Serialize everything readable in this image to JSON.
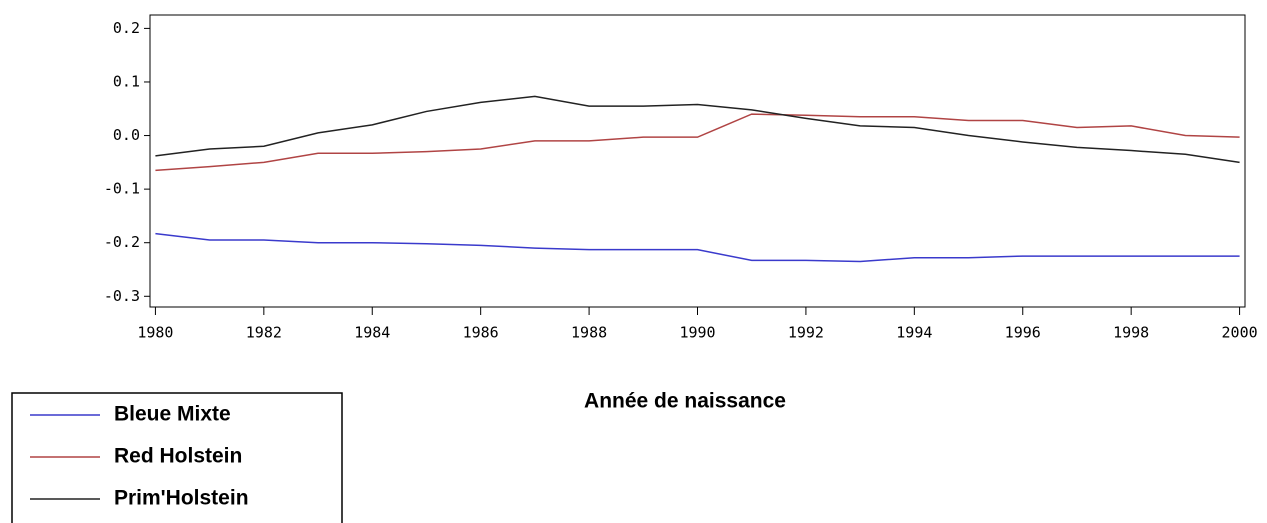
{
  "chart_data": {
    "type": "line",
    "xlabel": "Année de naissance",
    "x": [
      1980,
      1981,
      1982,
      1983,
      1984,
      1985,
      1986,
      1987,
      1988,
      1989,
      1990,
      1991,
      1992,
      1993,
      1994,
      1995,
      1996,
      1997,
      1998,
      1999,
      2000
    ],
    "series": [
      {
        "name": "Bleue Mixte",
        "color": "#3a3acc",
        "values": [
          -0.183,
          -0.195,
          -0.195,
          -0.2,
          -0.2,
          -0.202,
          -0.205,
          -0.21,
          -0.213,
          -0.213,
          -0.213,
          -0.233,
          -0.233,
          -0.235,
          -0.228,
          -0.228,
          -0.225,
          -0.225,
          -0.225,
          -0.225,
          -0.225
        ]
      },
      {
        "name": "Red Holstein",
        "color": "#b04444",
        "values": [
          -0.065,
          -0.058,
          -0.05,
          -0.033,
          -0.033,
          -0.03,
          -0.025,
          -0.01,
          -0.01,
          -0.003,
          -0.003,
          0.04,
          0.038,
          0.035,
          0.035,
          0.028,
          0.028,
          0.015,
          0.018,
          0.0,
          -0.003
        ]
      },
      {
        "name": "Prim'Holstein",
        "color": "#222222",
        "values": [
          -0.038,
          -0.025,
          -0.02,
          0.005,
          0.02,
          0.045,
          0.062,
          0.073,
          0.055,
          0.055,
          0.058,
          0.048,
          0.032,
          0.018,
          0.015,
          0.0,
          -0.012,
          -0.022,
          -0.028,
          -0.035,
          -0.05
        ]
      }
    ],
    "xlim": [
      1979.9,
      2000.1
    ],
    "xticks": [
      1980,
      1982,
      1984,
      1986,
      1988,
      1990,
      1992,
      1994,
      1996,
      1998,
      2000
    ],
    "ylim": [
      -0.32,
      0.225
    ],
    "yticks": [
      0.2,
      0.1,
      {
        "value": 0,
        "label": "0.0"
      },
      -0.1,
      -0.2,
      -0.3
    ]
  }
}
